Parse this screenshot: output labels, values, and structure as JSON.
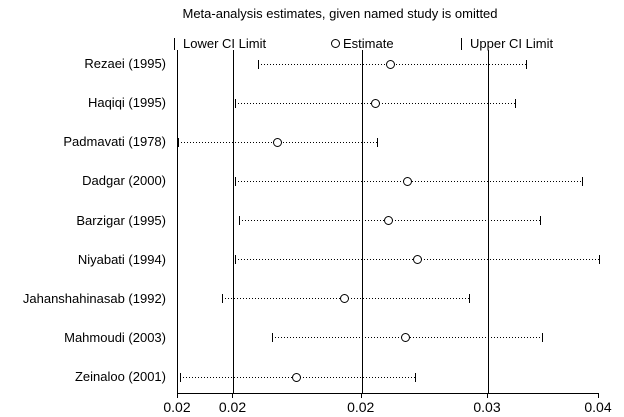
{
  "colors": {
    "foreground": "#000000",
    "background": "#ffffff"
  },
  "chart_data": {
    "type": "forest",
    "title": "Meta-analysis estimates, given named study is omitted",
    "legend": [
      {
        "glyph": "ci-bar",
        "label": "Lower CI Limit"
      },
      {
        "glyph": "circle",
        "label": "Estimate"
      },
      {
        "glyph": "ci-bar",
        "label": "Upper CI Limit"
      }
    ],
    "axis": {
      "orientation": "x",
      "min": 0.0152,
      "max": 0.0372,
      "ticks": [
        {
          "value": 0.0152,
          "label": "0.02"
        },
        {
          "value": 0.0181,
          "label": "0.02"
        },
        {
          "value": 0.0248,
          "label": "0.02"
        },
        {
          "value": 0.0314,
          "label": "0.03"
        },
        {
          "value": 0.0372,
          "label": "0.04"
        }
      ],
      "gridline_values": [
        0.0181,
        0.0248,
        0.0314
      ],
      "grid": true
    },
    "studies": [
      {
        "label": "Rezaei (1995)",
        "lower": 0.0194,
        "estimate": 0.0263,
        "upper": 0.0334
      },
      {
        "label": "Haqiqi (1995)",
        "lower": 0.0182,
        "estimate": 0.0255,
        "upper": 0.0328
      },
      {
        "label": "Padmavati (1978)",
        "lower": 0.0152,
        "estimate": 0.0204,
        "upper": 0.0256
      },
      {
        "label": "Dadgar (2000)",
        "lower": 0.0182,
        "estimate": 0.0272,
        "upper": 0.0363
      },
      {
        "label": "Barzigar (1995)",
        "lower": 0.0184,
        "estimate": 0.0262,
        "upper": 0.0341
      },
      {
        "label": "Niyabati (1994)",
        "lower": 0.0182,
        "estimate": 0.0277,
        "upper": 0.0372
      },
      {
        "label": "Jahanshahinasab (1992)",
        "lower": 0.0175,
        "estimate": 0.0239,
        "upper": 0.0304
      },
      {
        "label": "Mahmoudi (2003)",
        "lower": 0.0201,
        "estimate": 0.0271,
        "upper": 0.0342
      },
      {
        "label": "Zeinaloo (2001)",
        "lower": 0.0153,
        "estimate": 0.0214,
        "upper": 0.0276
      }
    ]
  }
}
